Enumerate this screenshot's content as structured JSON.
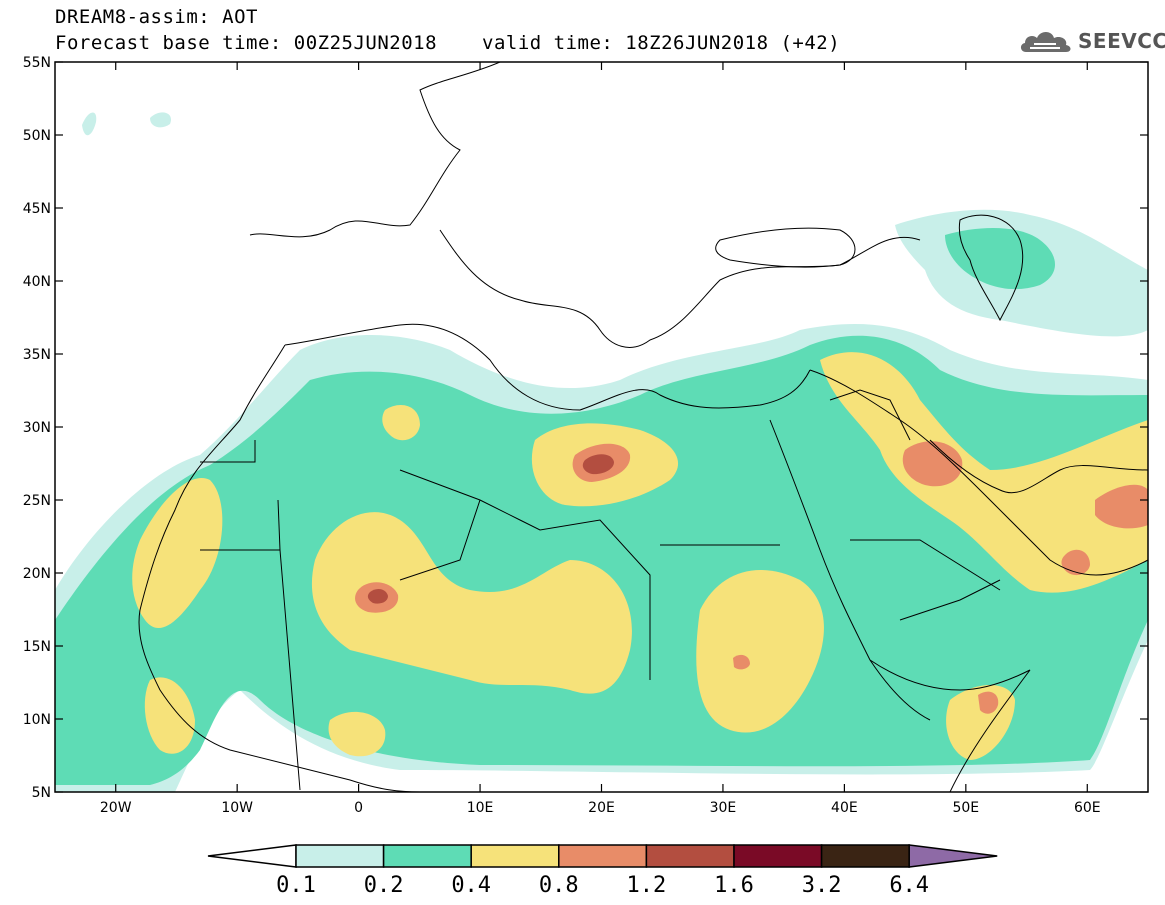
{
  "title": {
    "line1": "DREAM8-assim: AOT",
    "base_time": "Forecast base time: 00Z25JUN2018",
    "valid_time": "valid time: 18Z26JUN2018 (+42)"
  },
  "logo": {
    "text": "SEEVCCC",
    "icon": "cloud-logo-icon"
  },
  "map": {
    "lon_range": [
      -25,
      65
    ],
    "lat_range": [
      5,
      55
    ],
    "lon_ticks": [
      {
        "value": -20,
        "label": "20W"
      },
      {
        "value": -10,
        "label": "10W"
      },
      {
        "value": 0,
        "label": "0"
      },
      {
        "value": 10,
        "label": "10E"
      },
      {
        "value": 20,
        "label": "20E"
      },
      {
        "value": 30,
        "label": "30E"
      },
      {
        "value": 40,
        "label": "40E"
      },
      {
        "value": 50,
        "label": "50E"
      },
      {
        "value": 60,
        "label": "60E"
      }
    ],
    "lat_ticks": [
      {
        "value": 55,
        "label": "55N"
      },
      {
        "value": 50,
        "label": "50N"
      },
      {
        "value": 45,
        "label": "45N"
      },
      {
        "value": 40,
        "label": "40N"
      },
      {
        "value": 35,
        "label": "35N"
      },
      {
        "value": 30,
        "label": "30N"
      },
      {
        "value": 25,
        "label": "25N"
      },
      {
        "value": 20,
        "label": "20N"
      },
      {
        "value": 15,
        "label": "15N"
      },
      {
        "value": 10,
        "label": "10N"
      },
      {
        "value": 5,
        "label": "5N"
      }
    ]
  },
  "colorbar": {
    "labels": [
      "0.1",
      "0.2",
      "0.4",
      "0.8",
      "1.2",
      "1.6",
      "3.2",
      "6.4"
    ],
    "colors": [
      "#c8efe9",
      "#5edcb5",
      "#f6e27a",
      "#e88c68",
      "#b34e40",
      "#7a0a26",
      "#3a2414",
      "#8e6aa6"
    ]
  },
  "colors": {
    "c01": "#c8efe9",
    "c02": "#5edcb5",
    "c04": "#f6e27a",
    "c08": "#e88c68",
    "c12": "#b34e40"
  }
}
